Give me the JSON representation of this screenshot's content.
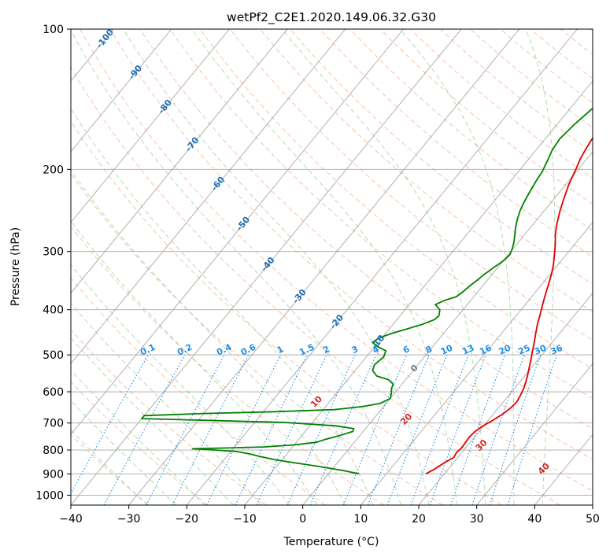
{
  "chart_data": {
    "type": "line",
    "title": "wetPf2_C2E1.2020.149.06.32.G30",
    "xlabel": "Temperature (°C)",
    "ylabel": "Pressure (hPa)",
    "xlim": [
      -40,
      50
    ],
    "ylim": [
      1050,
      100
    ],
    "y_scale": "log",
    "grid": true,
    "x_ticks": [
      -40,
      -30,
      -20,
      -10,
      0,
      10,
      20,
      30,
      40,
      50
    ],
    "y_ticks": [
      100,
      200,
      300,
      400,
      500,
      600,
      700,
      800,
      900,
      1000
    ],
    "colors": {
      "temperature": "#e00000",
      "dewpoint": "#008000",
      "isotherm": "#a8a8a8",
      "dry_adiabat": "#f4a582",
      "moist_adiabat": "#8fc98f",
      "mixing_ratio": "#1f8fe8",
      "isotherm_label": "#1f6fb4",
      "moist_label": "#d62728"
    },
    "series": [
      {
        "key": "temperature",
        "points": [
          [
            16.8,
            900
          ],
          [
            17.0,
            895
          ],
          [
            17.6,
            880
          ],
          [
            17.9,
            870
          ],
          [
            18.5,
            850
          ],
          [
            19.3,
            830
          ],
          [
            19.1,
            810
          ],
          [
            19.3,
            790
          ],
          [
            19.2,
            770
          ],
          [
            19.1,
            750
          ],
          [
            19.3,
            730
          ],
          [
            19.9,
            710
          ],
          [
            20.8,
            690
          ],
          [
            21.6,
            670
          ],
          [
            22.1,
            650
          ],
          [
            22.3,
            630
          ],
          [
            22.0,
            610
          ],
          [
            21.6,
            590
          ],
          [
            21.0,
            570
          ],
          [
            20.3,
            550
          ],
          [
            19.5,
            530
          ],
          [
            18.7,
            510
          ],
          [
            17.8,
            490
          ],
          [
            16.9,
            470
          ],
          [
            15.9,
            450
          ],
          [
            14.9,
            430
          ],
          [
            14.0,
            410
          ],
          [
            13.0,
            390
          ],
          [
            12.0,
            370
          ],
          [
            11.0,
            350
          ],
          [
            10.2,
            335
          ],
          [
            9.2,
            320
          ],
          [
            8.0,
            305
          ],
          [
            6.7,
            290
          ],
          [
            5.2,
            275
          ],
          [
            3.9,
            260
          ],
          [
            2.7,
            245
          ],
          [
            1.6,
            230
          ],
          [
            0.5,
            215
          ],
          [
            -0.4,
            200
          ],
          [
            -1.1,
            190
          ],
          [
            -1.6,
            180
          ],
          [
            -2.0,
            170
          ],
          [
            -2.3,
            160
          ],
          [
            -2.2,
            150
          ],
          [
            -1.7,
            140
          ],
          [
            -1.0,
            130
          ],
          [
            0.2,
            120
          ],
          [
            1.9,
            110
          ],
          [
            3.8,
            100
          ]
        ]
      },
      {
        "key": "dewpoint",
        "points": [
          [
            5.3,
            900
          ],
          [
            2.0,
            885
          ],
          [
            -2.0,
            870
          ],
          [
            -6.5,
            855
          ],
          [
            -11.0,
            840
          ],
          [
            -14.5,
            825
          ],
          [
            -16.5,
            815
          ],
          [
            -19.0,
            806
          ],
          [
            -23.0,
            800
          ],
          [
            -27.0,
            795
          ],
          [
            -21.0,
            792
          ],
          [
            -15.0,
            788
          ],
          [
            -10.0,
            780
          ],
          [
            -6.5,
            770
          ],
          [
            -5.5,
            760
          ],
          [
            -3.5,
            745
          ],
          [
            -1.8,
            730
          ],
          [
            -2.0,
            720
          ],
          [
            -5.5,
            710
          ],
          [
            -15.0,
            698
          ],
          [
            -30.0,
            690
          ],
          [
            -40.0,
            685
          ],
          [
            -40.0,
            675
          ],
          [
            -30.0,
            668
          ],
          [
            -18.0,
            662
          ],
          [
            -8.0,
            655
          ],
          [
            -3.5,
            645
          ],
          [
            -1.0,
            635
          ],
          [
            0.0,
            620
          ],
          [
            -0.5,
            605
          ],
          [
            -1.2,
            590
          ],
          [
            -1.5,
            578
          ],
          [
            -3.0,
            565
          ],
          [
            -5.5,
            555
          ],
          [
            -7.0,
            540
          ],
          [
            -7.5,
            525
          ],
          [
            -7.0,
            505
          ],
          [
            -7.5,
            490
          ],
          [
            -9.5,
            480
          ],
          [
            -11.0,
            470
          ],
          [
            -10.5,
            460
          ],
          [
            -9.0,
            450
          ],
          [
            -7.0,
            440
          ],
          [
            -5.0,
            430
          ],
          [
            -3.5,
            420
          ],
          [
            -3.3,
            412
          ],
          [
            -4.0,
            400
          ],
          [
            -5.5,
            390
          ],
          [
            -4.5,
            382
          ],
          [
            -3.0,
            375
          ],
          [
            -2.5,
            365
          ],
          [
            -2.2,
            355
          ],
          [
            -1.7,
            345
          ],
          [
            -1.3,
            335
          ],
          [
            -0.7,
            325
          ],
          [
            0.0,
            315
          ],
          [
            0.3,
            305
          ],
          [
            -0.2,
            295
          ],
          [
            -0.9,
            285
          ],
          [
            -1.8,
            275
          ],
          [
            -2.7,
            265
          ],
          [
            -3.5,
            255
          ],
          [
            -4.2,
            245
          ],
          [
            -4.7,
            235
          ],
          [
            -5.1,
            225
          ],
          [
            -5.6,
            212
          ],
          [
            -5.9,
            202
          ],
          [
            -6.5,
            192
          ],
          [
            -7.2,
            182
          ],
          [
            -7.5,
            172
          ],
          [
            -7.0,
            160
          ],
          [
            -6.3,
            150
          ],
          [
            -5.5,
            140
          ],
          [
            -4.8,
            130
          ],
          [
            -4.2,
            120
          ],
          [
            -3.2,
            110
          ],
          [
            -2.5,
            100
          ]
        ]
      }
    ],
    "isotherm_labels": [
      "-100",
      "-90",
      "-80",
      "-70",
      "-60",
      "-50",
      "-40",
      "-30",
      "-20",
      "-10",
      "0"
    ],
    "moist_adiabat_labels": [
      "10",
      "20",
      "30",
      "40"
    ],
    "mixing_ratio_labels": [
      "0.1",
      "0.2",
      "0.4",
      "0.6",
      "1",
      "1.5",
      "2",
      "3",
      "4",
      "6",
      "8",
      "10",
      "13",
      "16",
      "20",
      "25",
      "30",
      "36"
    ]
  }
}
